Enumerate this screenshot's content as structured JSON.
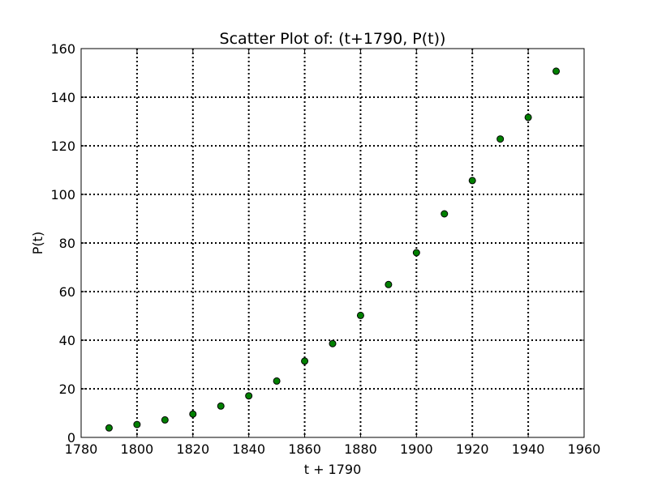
{
  "chart_data": {
    "type": "scatter",
    "title": "Scatter Plot of: (t+1790, P(t))",
    "xlabel": "t + 1790",
    "ylabel": "P(t)",
    "xlim": [
      1780,
      1960
    ],
    "ylim": [
      0,
      160
    ],
    "xticks": [
      1780,
      1800,
      1820,
      1840,
      1860,
      1880,
      1900,
      1920,
      1940,
      1960
    ],
    "yticks": [
      0,
      20,
      40,
      60,
      80,
      100,
      120,
      140,
      160
    ],
    "xtick_labels": [
      "1780",
      "1800",
      "1820",
      "1840",
      "1860",
      "1880",
      "1900",
      "1920",
      "1940",
      "1960"
    ],
    "ytick_labels": [
      "0",
      "20",
      "40",
      "60",
      "80",
      "100",
      "120",
      "140",
      "160"
    ],
    "grid": true,
    "legend": "none",
    "marker_color": "#008000",
    "marker_edge_color": "#000000",
    "series": [
      {
        "x": [
          1790,
          1800,
          1810,
          1820,
          1830,
          1840,
          1850,
          1860,
          1870,
          1880,
          1890,
          1900,
          1910,
          1920,
          1930,
          1940,
          1950
        ],
        "y": [
          3.9,
          5.3,
          7.2,
          9.6,
          12.9,
          17.1,
          23.2,
          31.4,
          38.6,
          50.2,
          62.9,
          76.0,
          92.0,
          105.7,
          122.8,
          131.7,
          150.7
        ]
      }
    ]
  }
}
